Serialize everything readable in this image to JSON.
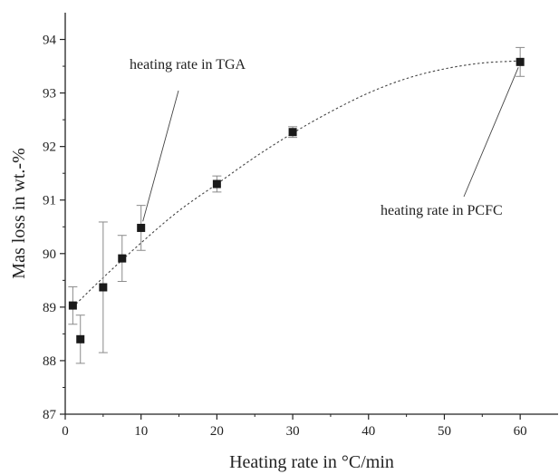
{
  "chart_data": {
    "type": "scatter",
    "title": "",
    "xlabel": "Heating rate in °C/min",
    "ylabel": "Mas loss in wt.-%",
    "xlim": [
      0,
      65
    ],
    "ylim": [
      87,
      94.5
    ],
    "xticks": [
      0,
      10,
      20,
      30,
      40,
      50,
      60
    ],
    "yticks": [
      87,
      88,
      89,
      90,
      91,
      92,
      93,
      94
    ],
    "grid": false,
    "legend": "none",
    "series": [
      {
        "x": [
          1,
          2,
          5,
          7.5,
          10,
          20,
          30,
          60
        ],
        "y": [
          89.03,
          88.4,
          89.37,
          89.91,
          90.48,
          91.3,
          92.27,
          93.58
        ],
        "error_plus": [
          0.35,
          0.45,
          1.22,
          0.43,
          0.42,
          0.15,
          0.1,
          0.27
        ],
        "error_minus": [
          0.35,
          0.45,
          1.22,
          0.43,
          0.42,
          0.15,
          0.1,
          0.27
        ]
      }
    ],
    "trendline": {
      "style": "dotted",
      "x": [
        1,
        5,
        10,
        15,
        20,
        25,
        30,
        35,
        40,
        45,
        50,
        55,
        60
      ],
      "y": [
        89.0,
        89.55,
        90.2,
        90.8,
        91.3,
        91.8,
        92.25,
        92.65,
        93.0,
        93.27,
        93.45,
        93.56,
        93.6
      ]
    },
    "annotations": [
      {
        "text": "heating rate in TGA",
        "points_to": [
          10,
          90.5
        ]
      },
      {
        "text": "heating rate in PCFC",
        "points_to": [
          60,
          93.58
        ]
      }
    ],
    "colors": {
      "marker": "#1a1a1a",
      "line": "#444444",
      "error_bar": "#8a8a8a",
      "axis": "#222222"
    }
  }
}
